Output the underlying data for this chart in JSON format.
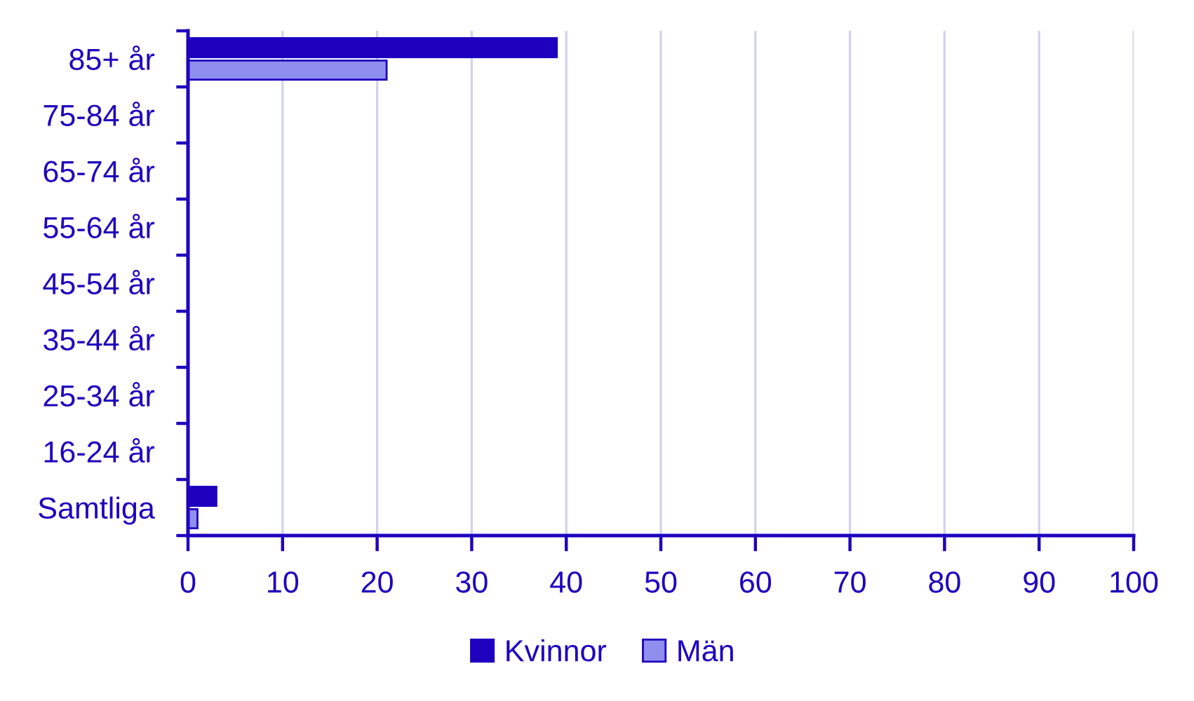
{
  "chart_data": {
    "type": "bar",
    "orientation": "horizontal",
    "categories": [
      "85+ år",
      "75-84 år",
      "65-74 år",
      "55-64 år",
      "45-54 år",
      "35-44 år",
      "25-34 år",
      "16-24 år",
      "Samtliga"
    ],
    "series": [
      {
        "name": "Kvinnor",
        "color": "#1e00be",
        "values": [
          39,
          null,
          null,
          null,
          null,
          null,
          null,
          null,
          3
        ]
      },
      {
        "name": "Män",
        "color": "#8f8ff0",
        "values": [
          21,
          null,
          null,
          null,
          null,
          null,
          null,
          null,
          1
        ]
      }
    ],
    "xlim": [
      0,
      100
    ],
    "xticks": [
      0,
      10,
      20,
      30,
      40,
      50,
      60,
      70,
      80,
      90,
      100
    ],
    "grid": "x",
    "legend": "bottom"
  }
}
